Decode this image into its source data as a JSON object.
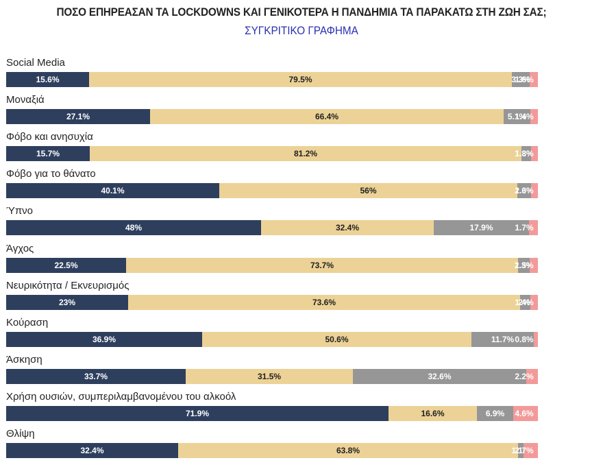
{
  "chart_data": {
    "type": "bar",
    "orientation": "horizontal",
    "stacked": true,
    "title": "ΠΟΣΟ ΕΠΗΡΕΑΣΑΝ ΤΑ LOCKDOWNS ΚΑΙ ΓΕΝΙΚΟΤΕΡΑ Η ΠΑΝΔΗΜΙΑ ΤΑ ΠΑΡΑΚΑΤΩ ΣΤΗ ΖΩΗ ΣΑΣ;",
    "subtitle": "ΣΥΓΚΡΙΤΙΚΟ ΓΡΑΦΗΜΑ",
    "xlim": [
      0,
      100
    ],
    "legend": "none",
    "grid": false,
    "categories": [
      "Social Media",
      "Μοναξιά",
      "Φόβο και ανησυχία",
      "Φόβο για το θάνατο",
      "Ύπνο",
      "Άγχος",
      "Νευρικότητα / Εκνευρισμός",
      "Κούραση",
      "Άσκηση",
      "Χρήση ουσιών, συμπεριλαμβανομένου του αλκοόλ",
      "Θλίψη"
    ],
    "series": [
      {
        "name": "series-1",
        "color": "#2e3f5e",
        "text_color": "#ffffff",
        "values": [
          15.6,
          27.1,
          15.7,
          40.1,
          48,
          22.5,
          23,
          36.9,
          33.7,
          71.9,
          32.4
        ]
      },
      {
        "name": "series-2",
        "color": "#ecd296",
        "text_color": "#222222",
        "values": [
          79.5,
          66.4,
          81.2,
          56,
          32.4,
          73.7,
          73.6,
          50.6,
          31.5,
          16.6,
          63.8
        ]
      },
      {
        "name": "series-3",
        "color": "#969696",
        "text_color": "#ffffff",
        "values": [
          3.3,
          5.1,
          1.8,
          2.6,
          17.9,
          2.3,
          2,
          11.7,
          32.6,
          6.9,
          1.1
        ]
      },
      {
        "name": "series-4",
        "color": "#f29a9a",
        "text_color": "#ffffff",
        "values": [
          1.6,
          1.4,
          1.3,
          1.3,
          1.7,
          1.5,
          1.4,
          0.8,
          2.2,
          4.6,
          2.7
        ]
      }
    ]
  }
}
